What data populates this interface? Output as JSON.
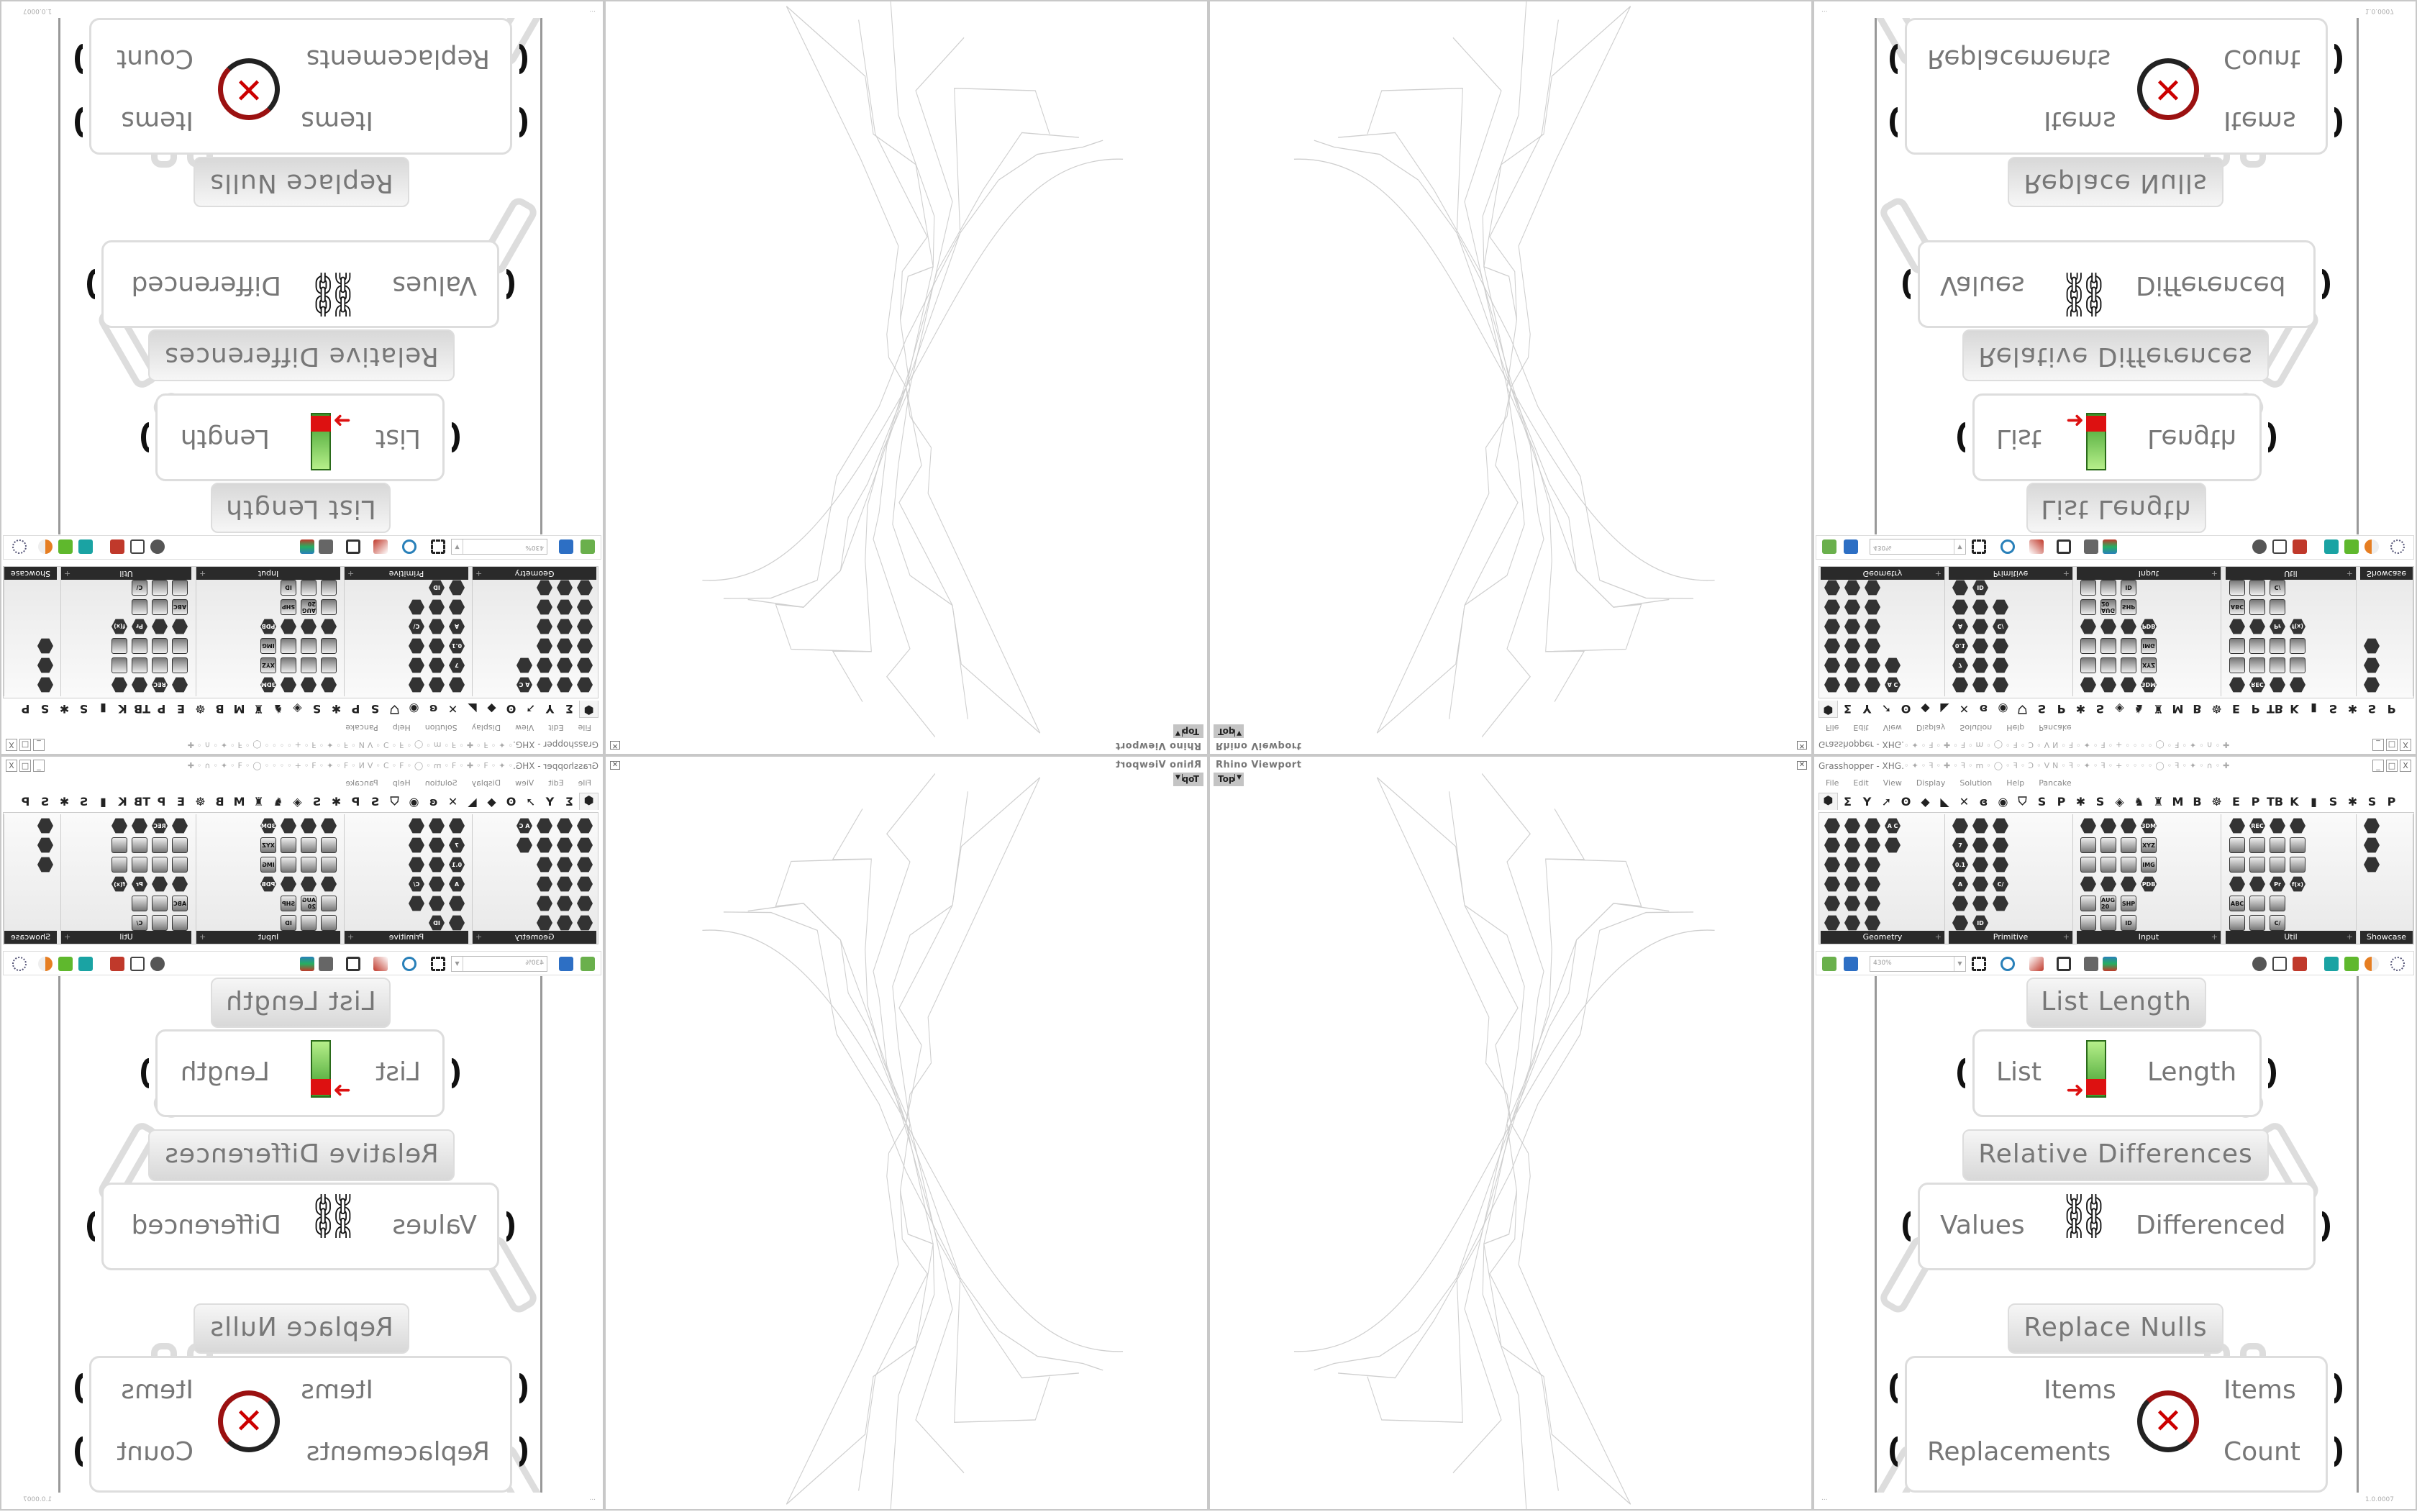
{
  "viewport": {
    "title": "Rhino Viewport",
    "view_label": "Top",
    "dropdown_icon": "chevron-down-icon",
    "close_icon": "close-icon"
  },
  "grasshopper": {
    "title": "Grasshopper - XHG.",
    "window_buttons": [
      "_",
      "□",
      "X"
    ],
    "menu": [
      "File",
      "Edit",
      "View",
      "Display",
      "Solution",
      "Help",
      "Pancake"
    ],
    "tabs": [
      "⬢",
      "Σ",
      "Y",
      "➚",
      "ʘ",
      "◆",
      "◣",
      "✕",
      "ɞ",
      "◉",
      "⛉",
      "S",
      "P",
      "✱",
      "S",
      "◈",
      "♞",
      "♜",
      "M",
      "B",
      "☸",
      "E",
      "P",
      "TB",
      "K",
      "▮",
      "S",
      "✱",
      "S",
      "P"
    ],
    "panels": [
      {
        "label": "Geometry",
        "icons": [
          "",
          "",
          "",
          "",
          "",
          "",
          "",
          "",
          "",
          "",
          "",
          "",
          "",
          "",
          "",
          "",
          "",
          "",
          "A C",
          ""
        ]
      },
      {
        "label": "Primitive",
        "icons": [
          "",
          "7",
          "0.1",
          "A",
          "",
          "",
          "",
          "",
          "",
          "",
          "",
          "ID",
          "",
          "",
          "",
          "C/",
          ""
        ]
      },
      {
        "label": "Input",
        "icons": [
          "",
          "",
          "",
          "",
          "",
          "",
          "",
          "",
          "",
          "",
          "AUG 20",
          "",
          "",
          "",
          "",
          "",
          "SHP",
          "ID",
          "3DM",
          "XYZ",
          "IMG",
          "PDB"
        ]
      },
      {
        "label": "Util",
        "icons": [
          "",
          "",
          "",
          "",
          "ABC",
          "",
          "REC",
          "",
          "",
          "",
          "",
          "",
          "",
          "",
          "",
          "Pr",
          "",
          "C/",
          "",
          "",
          "",
          "f(x)"
        ]
      },
      {
        "label": "Showcase T...",
        "icons": [
          "",
          "",
          ""
        ]
      }
    ],
    "toolbar": {
      "zoom_value": "430%"
    },
    "canvas": {
      "list_length": {
        "name": "List Length",
        "input": "List",
        "output": "Length"
      },
      "relative_differences": {
        "name": "Relative Differences",
        "input": "Values",
        "output": "Differenced"
      },
      "replace_nulls": {
        "name": "Replace Nulls",
        "inputs": [
          "Items",
          "Replacements"
        ],
        "outputs": [
          "Items",
          "Count"
        ]
      }
    },
    "status": {
      "left": "...",
      "version": "1.0.0007"
    }
  }
}
